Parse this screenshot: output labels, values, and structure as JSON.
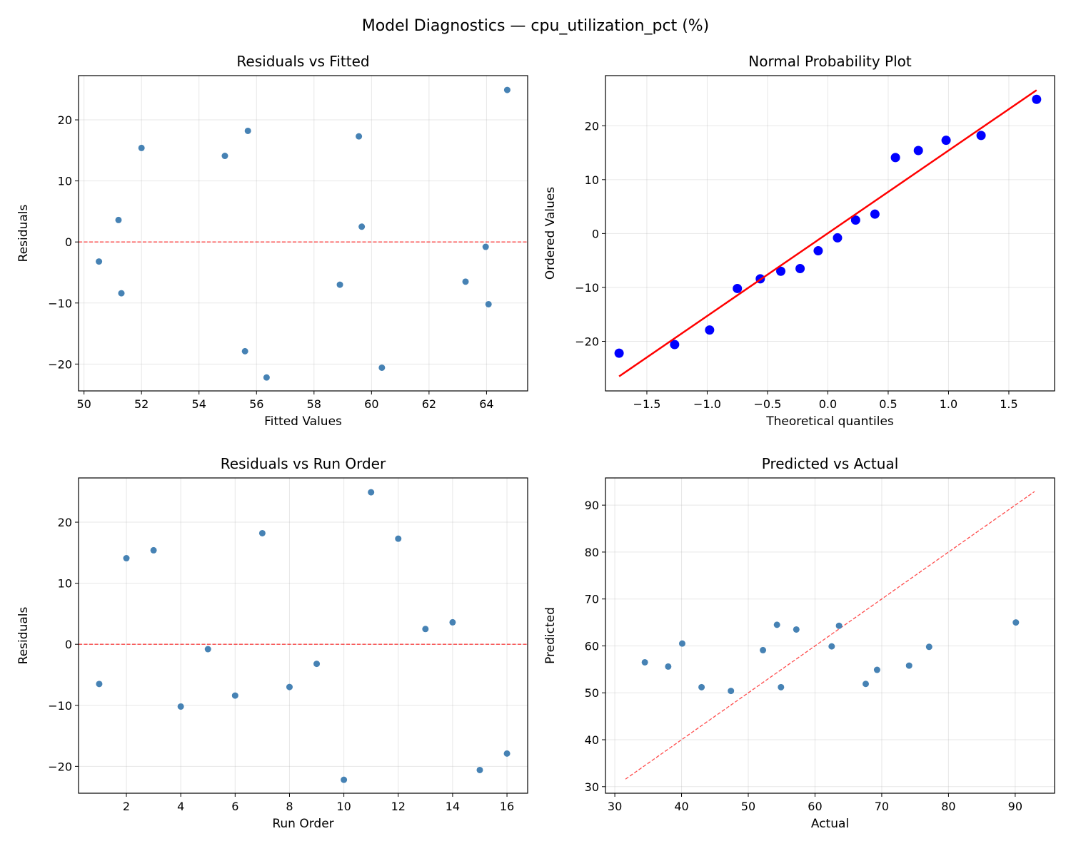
{
  "title": "Model Diagnostics — cpu_utilization_pct (%)",
  "chart_data": [
    {
      "type": "scatter",
      "title": "Residuals vs Fitted",
      "xlabel": "Fitted Values",
      "ylabel": "Residuals",
      "xlim": [
        49.81,
        65.43
      ],
      "ylim": [
        -24.4,
        27.25
      ],
      "xticks": [
        50,
        52,
        54,
        56,
        58,
        60,
        62,
        64
      ],
      "yticks": [
        -20,
        -10,
        0,
        10,
        20
      ],
      "grid": true,
      "point_color": "#4682b4",
      "x": [
        63.27,
        54.9,
        52.0,
        64.07,
        63.97,
        51.3,
        55.7,
        58.9,
        50.52,
        56.35,
        64.72,
        59.56,
        59.66,
        51.2,
        60.36,
        55.6
      ],
      "y": [
        -6.5,
        14.1,
        15.4,
        -10.2,
        -0.8,
        -8.4,
        18.2,
        -7.0,
        -3.2,
        -22.2,
        24.9,
        17.3,
        2.5,
        3.6,
        -20.6,
        -17.9
      ],
      "hline": {
        "y": 0,
        "color": "#ff0000",
        "style": "dashed"
      }
    },
    {
      "type": "scatter",
      "title": "Normal Probability Plot",
      "xlabel": "Theoretical quantiles",
      "ylabel": "Ordered Values",
      "xlim": [
        -1.843,
        1.879
      ],
      "ylim": [
        -29.2,
        29.3
      ],
      "xticks": [
        -1.5,
        -1.0,
        -0.5,
        0.0,
        0.5,
        1.0,
        1.5
      ],
      "yticks": [
        -20,
        -10,
        0,
        10,
        20
      ],
      "grid": true,
      "point_color": "#0000ff",
      "x": [
        -1.73,
        -1.27,
        -0.98,
        -0.75,
        -0.56,
        -0.39,
        -0.23,
        -0.08,
        0.08,
        0.23,
        0.39,
        0.56,
        0.75,
        0.98,
        1.27,
        1.73
      ],
      "y": [
        -22.2,
        -20.6,
        -17.9,
        -10.2,
        -8.4,
        -7.0,
        -6.5,
        -3.2,
        -0.8,
        2.5,
        3.6,
        14.1,
        15.4,
        17.3,
        18.2,
        24.9
      ],
      "fit_line": {
        "slope": 15.35,
        "intercept": 0.05,
        "x_range": [
          -1.73,
          1.73
        ],
        "color": "#ff0000"
      }
    },
    {
      "type": "scatter",
      "title": "Residuals vs Run Order",
      "xlabel": "Run Order",
      "ylabel": "Residuals",
      "xlim": [
        0.24,
        16.76
      ],
      "ylim": [
        -24.4,
        27.25
      ],
      "xticks": [
        2,
        4,
        6,
        8,
        10,
        12,
        14,
        16
      ],
      "yticks": [
        -20,
        -10,
        0,
        10,
        20
      ],
      "grid": true,
      "point_color": "#4682b4",
      "x": [
        1,
        2,
        3,
        4,
        5,
        6,
        7,
        8,
        9,
        10,
        11,
        12,
        13,
        14,
        15,
        16
      ],
      "y": [
        -6.5,
        14.1,
        15.4,
        -10.2,
        -0.8,
        -8.4,
        18.2,
        -7.0,
        -3.2,
        -22.2,
        24.9,
        17.3,
        2.5,
        3.6,
        -20.6,
        -17.9
      ],
      "hline": {
        "y": 0,
        "color": "#ff0000",
        "style": "dashed"
      }
    },
    {
      "type": "scatter",
      "title": "Predicted vs Actual",
      "xlabel": "Actual",
      "ylabel": "Predicted",
      "xlim": [
        28.6,
        95.9
      ],
      "ylim": [
        28.6,
        95.8
      ],
      "xticks": [
        30,
        40,
        50,
        60,
        70,
        80,
        90
      ],
      "yticks": [
        30,
        40,
        50,
        60,
        70,
        80,
        90
      ],
      "grid": true,
      "point_color": "#4682b4",
      "x": [
        57.2,
        69.3,
        67.6,
        54.3,
        63.6,
        43.0,
        74.1,
        52.2,
        47.4,
        34.5,
        90.1,
        77.1,
        62.5,
        54.9,
        40.1,
        38.0
      ],
      "y": [
        63.5,
        54.9,
        51.9,
        64.5,
        64.3,
        51.2,
        55.8,
        59.1,
        50.4,
        56.5,
        65.0,
        59.8,
        59.9,
        51.2,
        60.5,
        55.6
      ],
      "identity_line": {
        "range": [
          31.6,
          92.9
        ],
        "color": "#ff0000",
        "style": "dashed"
      }
    }
  ]
}
